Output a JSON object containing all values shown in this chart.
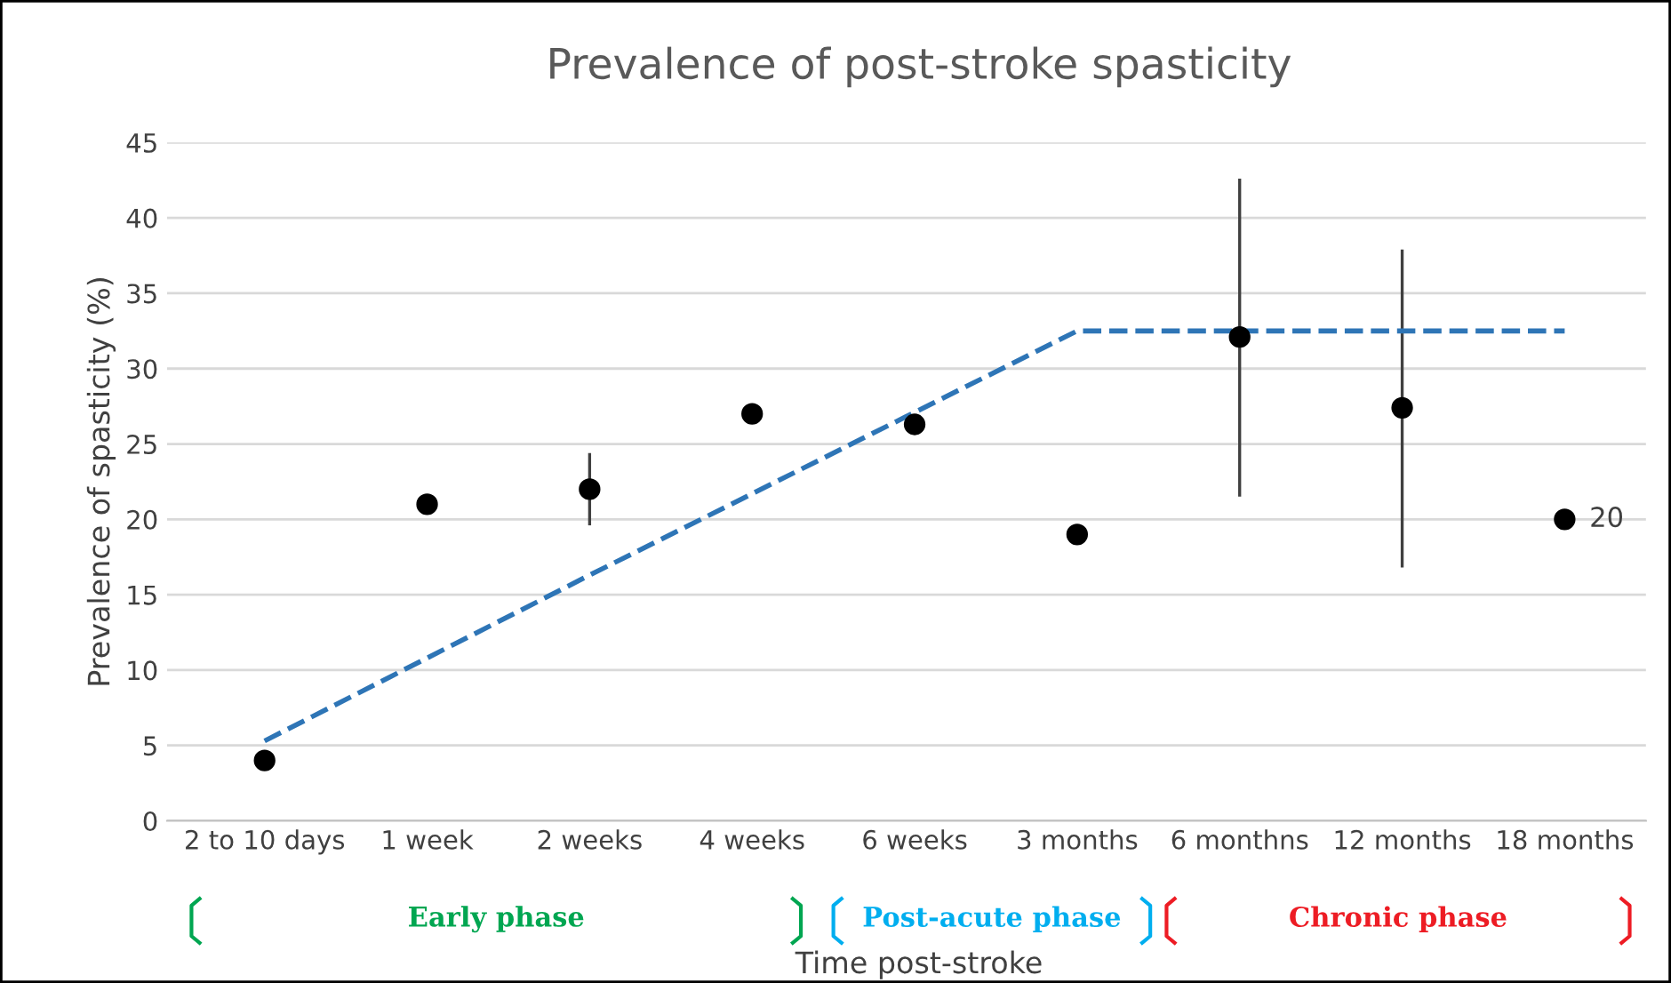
{
  "chart_data": {
    "type": "scatter",
    "title": "Prevalence of post-stroke spasticity",
    "xlabel": "Time post-stroke",
    "ylabel": "Prevalence of spasticity (%)",
    "categories": [
      "2 to 10 days",
      "1 week",
      "2 weeks",
      "4 weeks",
      "6 weeks",
      "3 months",
      "6 monthns",
      "12 months",
      "18 months"
    ],
    "series": [
      {
        "color": "#000000",
        "marker": "circle",
        "values": [
          4,
          21,
          22,
          27,
          26.3,
          19,
          32.1,
          27.4,
          20
        ],
        "errors": [
          null,
          null,
          [
            19.7,
            24.3
          ],
          null,
          null,
          null,
          [
            21.6,
            42.5
          ],
          [
            16.9,
            37.8
          ],
          null
        ],
        "value_labels": [
          null,
          null,
          null,
          null,
          null,
          null,
          null,
          null,
          "20"
        ]
      },
      {
        "type": "line",
        "color": "#2e75b6",
        "line_style": "dashed",
        "values": [
          5.3,
          10.8,
          16.3,
          21.7,
          27.1,
          32.5,
          32.5,
          32.5,
          32.5
        ]
      }
    ],
    "ylim": [
      0,
      45
    ],
    "yticks": [
      0,
      5,
      10,
      15,
      20,
      25,
      30,
      35,
      40,
      45
    ],
    "grid": "y",
    "annotations": [
      "Early phase",
      "Post-acute phase",
      "Chronic phase"
    ]
  }
}
